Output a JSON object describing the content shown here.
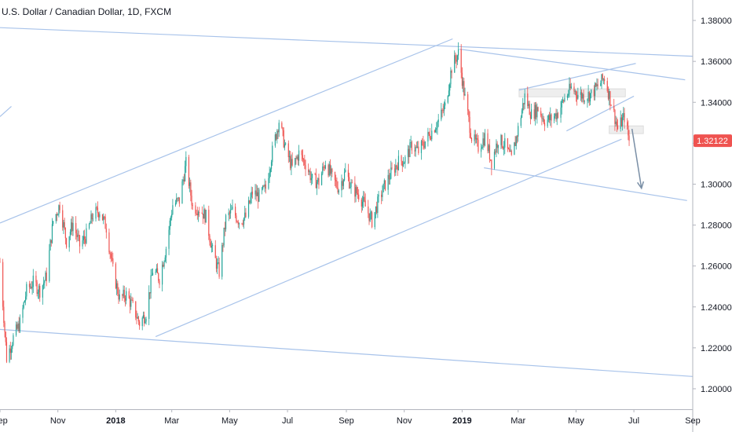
{
  "header": {
    "title": "U.S. Dollar / Canadian Dollar, 1D, FXCM"
  },
  "colors": {
    "up": "#26a69a",
    "down": "#ef5350",
    "trendline": "#a8c3ea",
    "arrow": "#7a8fa6",
    "price_tag": "#ef5350",
    "zone": "#eeeeee"
  },
  "current_price": {
    "label": "1.32122",
    "value": 1.32122
  },
  "chart_data": {
    "type": "candlestick",
    "title": "U.S. Dollar / Canadian Dollar, 1D, FXCM",
    "ylim": [
      1.19,
      1.39
    ],
    "y_ticks": [
      "1.38000",
      "1.36000",
      "1.34000",
      "1.32000",
      "1.30000",
      "1.28000",
      "1.26000",
      "1.24000",
      "1.22000",
      "1.20000"
    ],
    "y_tick_values": [
      1.38,
      1.36,
      1.34,
      1.32,
      1.3,
      1.28,
      1.26,
      1.24,
      1.22,
      1.2
    ],
    "x_ticks": [
      {
        "label": "Sep",
        "date": "2017-09-01",
        "bold": false
      },
      {
        "label": "Nov",
        "date": "2017-11-01",
        "bold": false
      },
      {
        "label": "2018",
        "date": "2018-01-01",
        "bold": true
      },
      {
        "label": "Mar",
        "date": "2018-03-01",
        "bold": false
      },
      {
        "label": "May",
        "date": "2018-05-01",
        "bold": false
      },
      {
        "label": "Jul",
        "date": "2018-07-01",
        "bold": false
      },
      {
        "label": "Sep",
        "date": "2018-09-01",
        "bold": false
      },
      {
        "label": "Nov",
        "date": "2018-11-01",
        "bold": false
      },
      {
        "label": "2019",
        "date": "2019-01-01",
        "bold": true
      },
      {
        "label": "Mar",
        "date": "2019-03-01",
        "bold": false
      },
      {
        "label": "May",
        "date": "2019-05-01",
        "bold": false
      },
      {
        "label": "Jul",
        "date": "2019-07-01",
        "bold": false
      },
      {
        "label": "Sep",
        "date": "2019-09-01",
        "bold": false
      }
    ],
    "x_range": [
      "2017-09-01",
      "2019-09-01"
    ],
    "close_path": [
      [
        "2017-09-01",
        1.262
      ],
      [
        "2017-09-08",
        1.215
      ],
      [
        "2017-09-15",
        1.225
      ],
      [
        "2017-09-22",
        1.232
      ],
      [
        "2017-09-29",
        1.248
      ],
      [
        "2017-10-06",
        1.252
      ],
      [
        "2017-10-13",
        1.248
      ],
      [
        "2017-10-20",
        1.255
      ],
      [
        "2017-10-27",
        1.282
      ],
      [
        "2017-11-03",
        1.29
      ],
      [
        "2017-11-10",
        1.272
      ],
      [
        "2017-11-17",
        1.281
      ],
      [
        "2017-11-24",
        1.27
      ],
      [
        "2017-12-01",
        1.275
      ],
      [
        "2017-12-08",
        1.285
      ],
      [
        "2017-12-15",
        1.287
      ],
      [
        "2017-12-22",
        1.279
      ],
      [
        "2017-12-29",
        1.258
      ],
      [
        "2018-01-05",
        1.244
      ],
      [
        "2018-01-12",
        1.246
      ],
      [
        "2018-01-19",
        1.24
      ],
      [
        "2018-01-26",
        1.232
      ],
      [
        "2018-02-02",
        1.237
      ],
      [
        "2018-02-09",
        1.258
      ],
      [
        "2018-02-16",
        1.254
      ],
      [
        "2018-02-23",
        1.269
      ],
      [
        "2018-03-02",
        1.29
      ],
      [
        "2018-03-09",
        1.292
      ],
      [
        "2018-03-16",
        1.31
      ],
      [
        "2018-03-23",
        1.289
      ],
      [
        "2018-03-30",
        1.288
      ],
      [
        "2018-04-06",
        1.284
      ],
      [
        "2018-04-13",
        1.267
      ],
      [
        "2018-04-20",
        1.257
      ],
      [
        "2018-04-27",
        1.283
      ],
      [
        "2018-05-04",
        1.287
      ],
      [
        "2018-05-11",
        1.282
      ],
      [
        "2018-05-18",
        1.284
      ],
      [
        "2018-05-25",
        1.296
      ],
      [
        "2018-06-01",
        1.294
      ],
      [
        "2018-06-08",
        1.298
      ],
      [
        "2018-06-15",
        1.316
      ],
      [
        "2018-06-22",
        1.331
      ],
      [
        "2018-06-29",
        1.317
      ],
      [
        "2018-07-06",
        1.308
      ],
      [
        "2018-07-13",
        1.315
      ],
      [
        "2018-07-20",
        1.31
      ],
      [
        "2018-07-27",
        1.302
      ],
      [
        "2018-08-03",
        1.301
      ],
      [
        "2018-08-10",
        1.311
      ],
      [
        "2018-08-17",
        1.303
      ],
      [
        "2018-08-24",
        1.298
      ],
      [
        "2018-08-31",
        1.306
      ],
      [
        "2018-09-07",
        1.298
      ],
      [
        "2018-09-14",
        1.295
      ],
      [
        "2018-09-21",
        1.289
      ],
      [
        "2018-09-28",
        1.282
      ],
      [
        "2018-10-05",
        1.292
      ],
      [
        "2018-10-12",
        1.3
      ],
      [
        "2018-10-19",
        1.306
      ],
      [
        "2018-10-26",
        1.311
      ],
      [
        "2018-11-02",
        1.312
      ],
      [
        "2018-11-09",
        1.319
      ],
      [
        "2018-11-16",
        1.316
      ],
      [
        "2018-11-23",
        1.321
      ],
      [
        "2018-11-30",
        1.326
      ],
      [
        "2018-12-07",
        1.331
      ],
      [
        "2018-12-14",
        1.338
      ],
      [
        "2018-12-21",
        1.357
      ],
      [
        "2018-12-28",
        1.364
      ],
      [
        "2019-01-04",
        1.342
      ],
      [
        "2019-01-11",
        1.323
      ],
      [
        "2019-01-18",
        1.318
      ],
      [
        "2019-01-25",
        1.323
      ],
      [
        "2019-02-01",
        1.311
      ],
      [
        "2019-02-08",
        1.322
      ],
      [
        "2019-02-15",
        1.319
      ],
      [
        "2019-02-22",
        1.312
      ],
      [
        "2019-03-01",
        1.327
      ],
      [
        "2019-03-08",
        1.343
      ],
      [
        "2019-03-15",
        1.334
      ],
      [
        "2019-03-22",
        1.337
      ],
      [
        "2019-03-29",
        1.331
      ],
      [
        "2019-04-05",
        1.332
      ],
      [
        "2019-04-12",
        1.335
      ],
      [
        "2019-04-19",
        1.342
      ],
      [
        "2019-04-26",
        1.347
      ],
      [
        "2019-05-03",
        1.344
      ],
      [
        "2019-05-10",
        1.343
      ],
      [
        "2019-05-17",
        1.344
      ],
      [
        "2019-05-24",
        1.348
      ],
      [
        "2019-05-31",
        1.352
      ],
      [
        "2019-06-07",
        1.34
      ],
      [
        "2019-06-14",
        1.327
      ],
      [
        "2019-06-21",
        1.333
      ],
      [
        "2019-06-26",
        1.3212
      ]
    ],
    "trendlines": [
      {
        "name": "top-descending-line",
        "from": [
          "2017-09-01",
          1.3765
        ],
        "to": [
          "2019-09-01",
          1.3625
        ]
      },
      {
        "name": "lower-channel-line",
        "from": [
          "2017-09-01",
          1.229
        ],
        "to": [
          "2019-09-01",
          1.206
        ]
      },
      {
        "name": "upper-ascending-line",
        "from": [
          "2017-09-01",
          1.281
        ],
        "to": [
          "2018-12-22",
          1.371
        ]
      },
      {
        "name": "lower-ascending-line",
        "from": [
          "2018-02-12",
          1.2255
        ],
        "to": [
          "2019-06-18",
          1.322
        ]
      },
      {
        "name": "short-left-segment",
        "from": [
          "2017-09-01",
          1.333
        ],
        "to": [
          "2017-09-13",
          1.338
        ]
      },
      {
        "name": "wedge-top-line",
        "from": [
          "2018-12-29",
          1.366
        ],
        "to": [
          "2019-08-24",
          1.351
        ]
      },
      {
        "name": "wedge-rising-line",
        "from": [
          "2019-03-02",
          1.346
        ],
        "to": [
          "2019-07-03",
          1.359
        ]
      },
      {
        "name": "inner-rising-line",
        "from": [
          "2019-04-21",
          1.326
        ],
        "to": [
          "2019-07-01",
          1.343
        ]
      },
      {
        "name": "lower-target-line",
        "from": [
          "2019-01-24",
          1.308
        ],
        "to": [
          "2019-08-26",
          1.292
        ]
      }
    ],
    "zones": [
      {
        "name": "resistance-zone",
        "from": "2019-03-02",
        "to": "2019-06-22",
        "top": 1.3466,
        "bottom": 1.3427
      },
      {
        "name": "support-zone",
        "from": "2019-06-05",
        "to": "2019-07-11",
        "top": 1.3285,
        "bottom": 1.3247
      }
    ],
    "arrow": {
      "from": [
        "2019-06-29",
        1.327
      ],
      "to": [
        "2019-07-09",
        1.298
      ]
    }
  }
}
